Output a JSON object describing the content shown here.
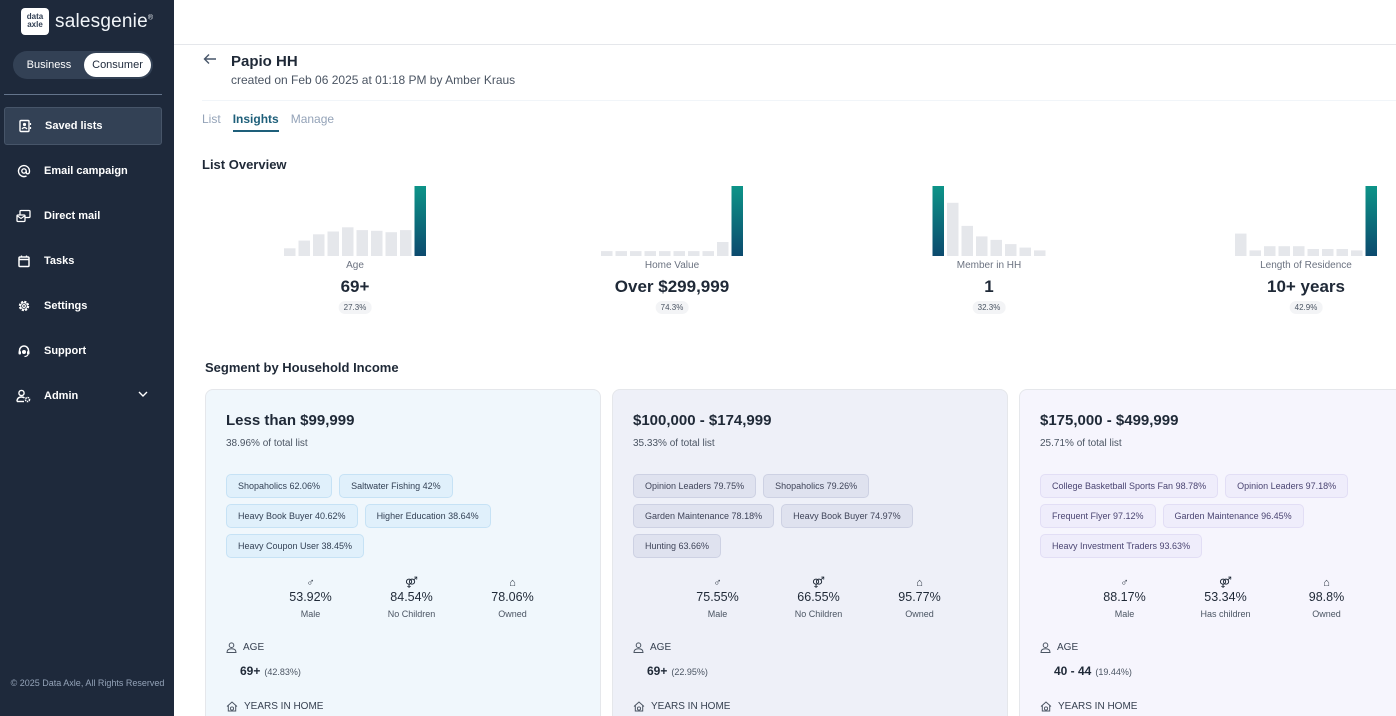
{
  "brand": {
    "logo_mark": "data axle",
    "name": "salesgenie"
  },
  "mode_toggle": {
    "options": [
      "Business",
      "Consumer"
    ],
    "selected": "Consumer"
  },
  "sidebar": {
    "items": [
      {
        "label": "Saved lists",
        "icon": "contact-book-icon",
        "active": true
      },
      {
        "label": "Email campaign",
        "icon": "at-icon"
      },
      {
        "label": "Direct mail",
        "icon": "mail-icon"
      },
      {
        "label": "Tasks",
        "icon": "calendar-icon"
      },
      {
        "label": "Settings",
        "icon": "gear-icon"
      },
      {
        "label": "Support",
        "icon": "headset-icon"
      },
      {
        "label": "Admin",
        "icon": "user-cog-icon",
        "expandable": true
      }
    ],
    "copyright": "© 2025 Data Axle, All Rights Reserved"
  },
  "header": {
    "title": "Papio HH",
    "subtitle": "created on Feb 06 2025 at 01:18 PM by Amber Kraus"
  },
  "tabs": [
    {
      "label": "List"
    },
    {
      "label": "Insights",
      "active": true
    },
    {
      "label": "Manage"
    }
  ],
  "overview": {
    "title": "List Overview",
    "accent_gradient": [
      "#0d9488",
      "#0c4a6e"
    ],
    "bar_color": "#e5e7eb",
    "items": [
      {
        "label": "Age",
        "value": "69+",
        "percent": "27.3%",
        "bars": [
          0.11,
          0.22,
          0.31,
          0.35,
          0.41,
          0.37,
          0.36,
          0.34,
          0.37,
          1.0
        ],
        "highlight": 9
      },
      {
        "label": "Home Value",
        "value": "Over $299,999",
        "percent": "74.3%",
        "bars": [
          0.07,
          0.07,
          0.07,
          0.07,
          0.07,
          0.07,
          0.07,
          0.07,
          0.2,
          1.0
        ],
        "highlight": 9
      },
      {
        "label": "Member in HH",
        "value": "1",
        "percent": "32.3%",
        "bars": [
          1.0,
          0.76,
          0.43,
          0.28,
          0.23,
          0.17,
          0.12,
          0.08
        ],
        "highlight": 0
      },
      {
        "label": "Length of Residence",
        "value": "10+ years",
        "percent": "42.9%",
        "bars": [
          0.32,
          0.08,
          0.14,
          0.14,
          0.14,
          0.1,
          0.1,
          0.1,
          0.08,
          1.0
        ],
        "highlight": 9
      }
    ]
  },
  "segments": {
    "title": "Segment by Household Income",
    "cards": [
      {
        "title": "Less than $99,999",
        "subtitle": "38.96% of total list",
        "bg": "#f0f7fc",
        "chip_bg": "#e0f0fb",
        "chip_border": "#c6e2f5",
        "chip_color": "#334155",
        "chips": [
          "Shopaholics 62.06%",
          "Saltwater Fishing 42%",
          "Heavy Book Buyer 40.62%",
          "Higher Education 38.64%",
          "Heavy Coupon User 38.45%"
        ],
        "stats": [
          {
            "icon": "male-icon",
            "value": "53.92%",
            "label": "Male"
          },
          {
            "icon": "couple-icon",
            "value": "84.54%",
            "label": "No Children"
          },
          {
            "icon": "home-icon",
            "value": "78.06%",
            "label": "Owned"
          }
        ],
        "age_label": "AGE",
        "age_value": "69+",
        "age_percent": "(42.83%)",
        "years_label": "YEARS IN HOME"
      },
      {
        "title": "$100,000 - $174,999",
        "subtitle": "35.33% of total list",
        "bg": "#eef0f8",
        "chip_bg": "#dfe2ef",
        "chip_border": "#cdd1e3",
        "chip_color": "#3f4459",
        "chips": [
          "Opinion Leaders 79.75%",
          "Shopaholics 79.26%",
          "Garden Maintenance 78.18%",
          "Heavy Book Buyer 74.97%",
          "Hunting 63.66%"
        ],
        "stats": [
          {
            "icon": "male-icon",
            "value": "75.55%",
            "label": "Male"
          },
          {
            "icon": "couple-icon",
            "value": "66.55%",
            "label": "No Children"
          },
          {
            "icon": "home-icon",
            "value": "95.77%",
            "label": "Owned"
          }
        ],
        "age_label": "AGE",
        "age_value": "69+",
        "age_percent": "(22.95%)",
        "years_label": "YEARS IN HOME"
      },
      {
        "title": "$175,000 - $499,999",
        "subtitle": "25.71% of total list",
        "bg": "#f6f5fd",
        "chip_bg": "#efedfb",
        "chip_border": "#e2def5",
        "chip_color": "#4b4572",
        "chips": [
          "College Basketball Sports Fan 98.78%",
          "Opinion Leaders 97.18%",
          "Frequent Flyer 97.12%",
          "Garden Maintenance 96.45%",
          "Heavy Investment Traders 93.63%"
        ],
        "stats": [
          {
            "icon": "male-icon",
            "value": "88.17%",
            "label": "Male"
          },
          {
            "icon": "family-icon",
            "value": "53.34%",
            "label": "Has children"
          },
          {
            "icon": "home-icon",
            "value": "98.8%",
            "label": "Owned"
          }
        ],
        "age_label": "AGE",
        "age_value": "40 - 44",
        "age_percent": "(19.44%)",
        "years_label": "YEARS IN HOME"
      }
    ]
  }
}
